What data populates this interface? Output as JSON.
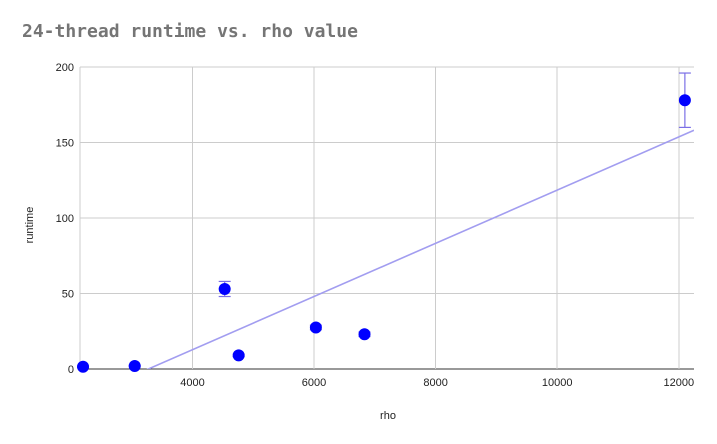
{
  "chart_data": {
    "type": "scatter",
    "title": "24-thread runtime vs. rho value",
    "xlabel": "rho",
    "ylabel": "runtime",
    "xlim": [
      2150,
      12250
    ],
    "ylim": [
      0,
      200
    ],
    "x_ticks": [
      4000,
      6000,
      8000,
      10000,
      12000
    ],
    "y_ticks": [
      0,
      50,
      100,
      150,
      200
    ],
    "x_tick_labels": [
      "4000",
      "6000",
      "8000",
      "10000",
      "12000"
    ],
    "y_tick_labels": [
      "0",
      "50",
      "100",
      "150",
      "200"
    ],
    "grid": true,
    "legend": "none",
    "point_color": "#0000ff",
    "trendline_color": "#a29df0",
    "errorbar_color": "#7b6fe6",
    "points": [
      {
        "x": 2200,
        "y": 1.5,
        "err": 0.5
      },
      {
        "x": 3050,
        "y": 2.0,
        "err": 0.5
      },
      {
        "x": 4530,
        "y": 53.0,
        "err": 5.0
      },
      {
        "x": 4760,
        "y": 9.0,
        "err": 0.8
      },
      {
        "x": 6030,
        "y": 27.5,
        "err": 1.5
      },
      {
        "x": 6830,
        "y": 23.0,
        "err": 1.5
      },
      {
        "x": 12100,
        "y": 178.0,
        "err": 18.0
      }
    ],
    "trendline": {
      "x": [
        2150,
        12250
      ],
      "y": [
        -19.8,
        158.1
      ]
    }
  }
}
